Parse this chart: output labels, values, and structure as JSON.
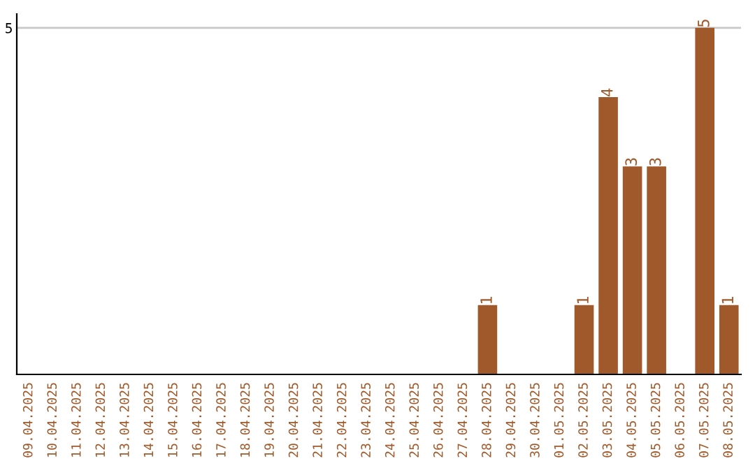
{
  "chart_data": {
    "type": "bar",
    "categories": [
      "09.04.2025",
      "10.04.2025",
      "11.04.2025",
      "12.04.2025",
      "13.04.2025",
      "14.04.2025",
      "15.04.2025",
      "16.04.2025",
      "17.04.2025",
      "18.04.2025",
      "19.04.2025",
      "20.04.2025",
      "21.04.2025",
      "22.04.2025",
      "23.04.2025",
      "24.04.2025",
      "25.04.2025",
      "26.04.2025",
      "27.04.2025",
      "28.04.2025",
      "29.04.2025",
      "30.04.2025",
      "01.05.2025",
      "02.05.2025",
      "03.05.2025",
      "04.05.2025",
      "05.05.2025",
      "06.05.2025",
      "07.05.2025",
      "08.05.2025"
    ],
    "values": [
      null,
      null,
      null,
      null,
      null,
      null,
      null,
      null,
      null,
      null,
      null,
      null,
      null,
      null,
      null,
      null,
      null,
      null,
      null,
      1,
      null,
      null,
      null,
      1,
      4,
      3,
      3,
      null,
      5,
      1
    ],
    "value_labels": [
      null,
      null,
      null,
      null,
      null,
      null,
      null,
      null,
      null,
      null,
      null,
      null,
      null,
      null,
      null,
      null,
      null,
      null,
      null,
      "1",
      null,
      null,
      null,
      "1",
      "4",
      "3",
      "3",
      null,
      "5",
      "1"
    ],
    "color": "#a0592a",
    "ylim": [
      0,
      5.2
    ],
    "yticks": [
      5
    ],
    "grid": "y"
  }
}
